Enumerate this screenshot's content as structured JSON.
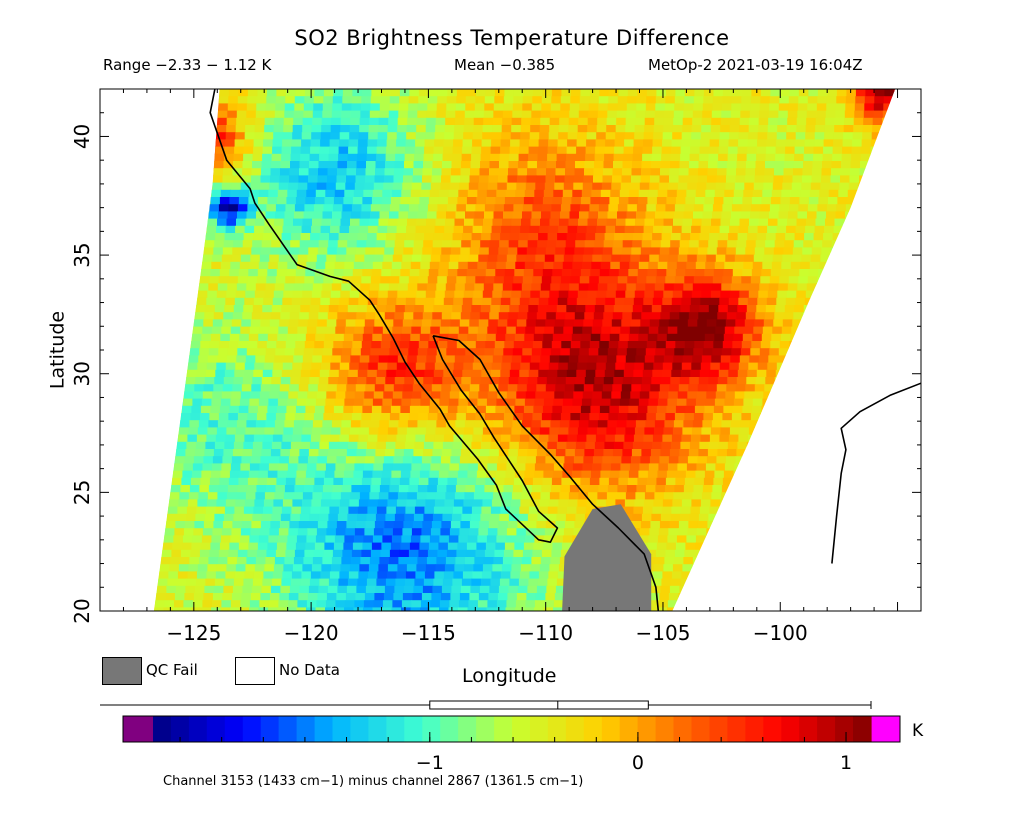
{
  "header": {
    "title": "SO2 Brightness Temperature Difference",
    "range": "Range −2.33 − 1.12 K",
    "mean": "Mean −0.385",
    "satellite_time": "MetOp-2 2021-03-19 16:04Z"
  },
  "legend": {
    "qc_fail": "QC Fail",
    "no_data": "No Data",
    "qc_color": "#777777"
  },
  "colorbar": {
    "unit": "K",
    "tick_labels": [
      "−1",
      "0",
      "1"
    ],
    "tick_values": [
      -1,
      0,
      1
    ],
    "min": -2.33,
    "max": 1.12,
    "colors": [
      "#000080",
      "#0000ff",
      "#00b4ff",
      "#40ffd0",
      "#c8ff30",
      "#ffd000",
      "#ff6000",
      "#ff0000",
      "#800000"
    ],
    "under_color": "#800080",
    "over_color": "#ff00ff"
  },
  "footnote": "Channel 3153 (1433 cm−1) minus channel 2867 (1361.5 cm−1)",
  "chart_data": {
    "type": "heatmap",
    "title": "SO2 Brightness Temperature Difference",
    "xlabel": "Longitude",
    "ylabel": "Latitude",
    "xlim": [
      -129,
      -94
    ],
    "ylim": [
      20,
      42
    ],
    "x_ticks": [
      -125,
      -120,
      -115,
      -110,
      -105,
      -100
    ],
    "x_tick_labels": [
      "−125",
      "−120",
      "−115",
      "−110",
      "−105",
      "−100"
    ],
    "y_ticks": [
      20,
      25,
      30,
      35,
      40
    ],
    "y_tick_labels": [
      "20",
      "25",
      "30",
      "35",
      "40"
    ],
    "value_range": [
      -2.33,
      1.12
    ],
    "mean": -0.385,
    "unit": "K",
    "swath_left_edge": [
      [
        -126.7,
        20
      ],
      [
        -124.6,
        35
      ],
      [
        -124.2,
        38
      ],
      [
        -123.9,
        42
      ]
    ],
    "swath_right_edge": [
      [
        -104.6,
        20
      ],
      [
        -101.4,
        27
      ],
      [
        -98.8,
        33
      ],
      [
        -97,
        37
      ],
      [
        -95.1,
        42
      ]
    ],
    "features": [
      {
        "lon": -108,
        "lat": 29.5,
        "value": 0.95,
        "sigma": 3.2
      },
      {
        "lon": -116.5,
        "lat": 30,
        "value": 0.6,
        "sigma": 2.2
      },
      {
        "lon": -103,
        "lat": 32,
        "value": 0.85,
        "sigma": 1.6
      },
      {
        "lon": -124.5,
        "lat": 40,
        "value": 0.75,
        "sigma": 1.2
      },
      {
        "lon": -95.5,
        "lat": 42,
        "value": 1.1,
        "sigma": 1.0
      },
      {
        "lon": -110,
        "lat": 36,
        "value": 0.3,
        "sigma": 3.0
      },
      {
        "lon": -116,
        "lat": 22.5,
        "value": -1.6,
        "sigma": 3.8
      },
      {
        "lon": -119,
        "lat": 38.5,
        "value": -1.35,
        "sigma": 2.6
      },
      {
        "lon": -124,
        "lat": 28,
        "value": -0.95,
        "sigma": 3.0
      },
      {
        "lon": -123.5,
        "lat": 37,
        "value": -2.0,
        "sigma": 0.6
      }
    ],
    "background_value": -0.45,
    "qc_fail_region": [
      [
        -109.3,
        20
      ],
      [
        -109.2,
        22.3
      ],
      [
        -108,
        24.3
      ],
      [
        -106.8,
        24.5
      ],
      [
        -105.5,
        22.4
      ],
      [
        -105.5,
        20
      ]
    ],
    "coastlines": [
      [
        [
          -124.1,
          42
        ],
        [
          -124.3,
          41
        ],
        [
          -123.6,
          39
        ],
        [
          -122.6,
          37.8
        ],
        [
          -122.4,
          37.2
        ],
        [
          -121.8,
          36.3
        ],
        [
          -120.6,
          34.6
        ],
        [
          -119.2,
          34.1
        ],
        [
          -118.4,
          33.9
        ],
        [
          -117.5,
          33.1
        ],
        [
          -117.1,
          32.5
        ],
        [
          -116.5,
          31.5
        ],
        [
          -116,
          30.5
        ],
        [
          -115.4,
          29.6
        ],
        [
          -114.5,
          28.5
        ],
        [
          -114.1,
          27.8
        ],
        [
          -112.9,
          26.4
        ],
        [
          -112.1,
          25.3
        ],
        [
          -111.7,
          24.3
        ],
        [
          -110.3,
          23
        ],
        [
          -109.8,
          22.9
        ],
        [
          -109.5,
          23.5
        ],
        [
          -110.3,
          24.2
        ],
        [
          -111,
          25.5
        ],
        [
          -112.2,
          27.3
        ],
        [
          -112.8,
          28.3
        ],
        [
          -113.6,
          29.3
        ],
        [
          -114.4,
          30.6
        ],
        [
          -114.8,
          31.6
        ]
      ],
      [
        [
          -114.8,
          31.6
        ],
        [
          -113.7,
          31.4
        ],
        [
          -112.8,
          30.6
        ],
        [
          -112,
          29.2
        ],
        [
          -111,
          27.8
        ],
        [
          -109.8,
          26.6
        ],
        [
          -109,
          25.7
        ],
        [
          -108,
          24.5
        ],
        [
          -106.9,
          23.5
        ],
        [
          -105.8,
          22.4
        ],
        [
          -105.3,
          21
        ],
        [
          -105.2,
          20
        ]
      ],
      [
        [
          -97.8,
          22
        ],
        [
          -97.6,
          24
        ],
        [
          -97.4,
          25.8
        ],
        [
          -97.2,
          26.8
        ],
        [
          -97.4,
          27.7
        ],
        [
          -96.6,
          28.4
        ],
        [
          -95.3,
          29.1
        ],
        [
          -94,
          29.6
        ]
      ]
    ]
  }
}
